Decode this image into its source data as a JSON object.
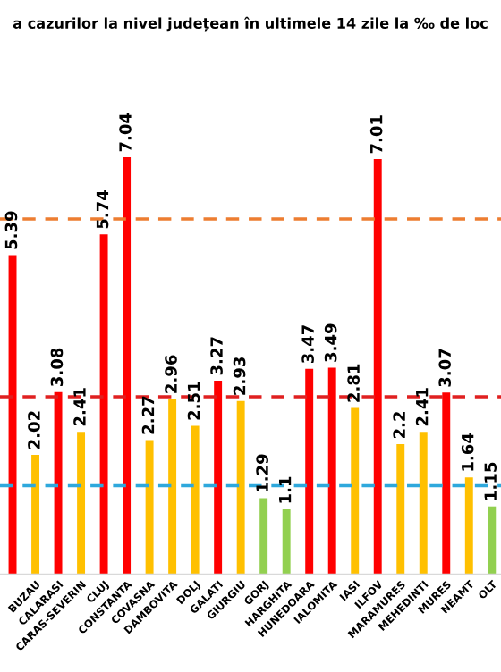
{
  "chart_data": {
    "type": "bar",
    "title": "a cazurilor la nivel județean în ultimele 14 zile la ‰ de loc",
    "categories": [
      null,
      "BUZAU",
      "CALARASI",
      "CARAS-SEVERIN",
      "CLUJ",
      "CONSTANTA",
      "COVASNA",
      "DAMBOVITA",
      "DOLJ",
      "GALATI",
      "GIURGIU",
      "GORJ",
      "HARGHITA",
      "HUNEDOARA",
      "IALOMITA",
      "IASI",
      "ILFOV",
      "MARAMURES",
      "MEHEDINTI",
      "MURES",
      "NEAMT",
      "OLT"
    ],
    "values": [
      5.39,
      2.02,
      3.08,
      2.41,
      5.74,
      7.04,
      2.27,
      2.96,
      2.51,
      3.27,
      2.93,
      1.29,
      1.1,
      3.47,
      3.49,
      2.81,
      7.01,
      2.2,
      2.41,
      3.07,
      1.64,
      1.15
    ],
    "colors": [
      "#ff0000",
      "#ffc000",
      "#ff0000",
      "#ffc000",
      "#ff0000",
      "#ff0000",
      "#ffc000",
      "#ffc000",
      "#ffc000",
      "#ff0000",
      "#ffc000",
      "#92d050",
      "#92d050",
      "#ff0000",
      "#ff0000",
      "#ffc000",
      "#ff0000",
      "#ffc000",
      "#ffc000",
      "#ff0000",
      "#ffc000",
      "#92d050"
    ],
    "data_labels": true,
    "grid": false,
    "legend": false,
    "ref_lines": [
      {
        "axis": "y",
        "value": 6,
        "color": "#ed7d31",
        "line_style": "dashed"
      },
      {
        "axis": "y",
        "value": 3,
        "color": "#e02020",
        "line_style": "dashed"
      },
      {
        "axis": "y",
        "value": 1.5,
        "color": "#2ea8dc",
        "line_style": "dashed"
      }
    ]
  }
}
